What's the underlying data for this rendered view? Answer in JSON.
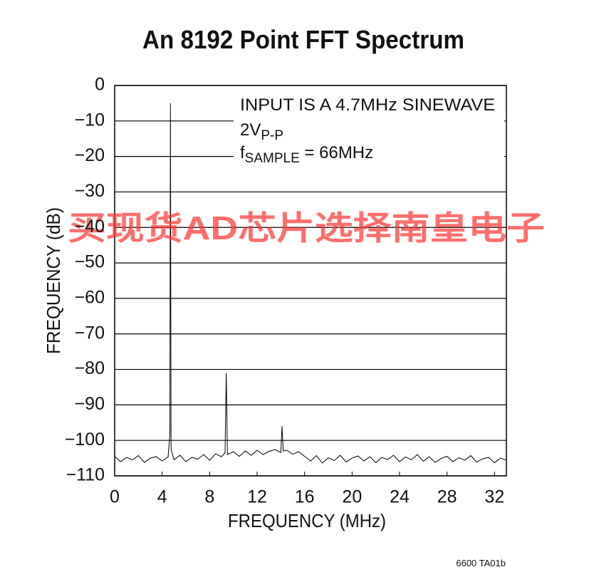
{
  "chart_data": {
    "type": "line",
    "title": "An 8192 Point FFT Spectrum",
    "x_label": "FREQUENCY (MHz)",
    "y_label": "FREQUENCY (dB)",
    "annotation": {
      "line1": "INPUT IS A 4.7MHz SINEWAVE",
      "line2": {
        "text": "2V",
        "sub": "P-P"
      },
      "line3": {
        "text": "f",
        "sub": "SAMPLE",
        "suffix": " = 66MHz"
      }
    },
    "watermark": "买现货AD芯片选择南皇电子",
    "footnote": "6600 TA01b",
    "color": "#000000",
    "grid": true,
    "xlim": [
      0,
      33
    ],
    "ylim": [
      -110,
      0
    ],
    "xticks": [
      0,
      4,
      8,
      12,
      16,
      20,
      24,
      28,
      32
    ],
    "yticks": [
      0,
      {
        "value": -10,
        "label": "−10"
      },
      {
        "value": -20,
        "label": "−20"
      },
      {
        "value": -30,
        "label": "−30"
      },
      {
        "value": -40,
        "label": "−40"
      },
      {
        "value": -50,
        "label": "−50"
      },
      {
        "value": -60,
        "label": "−60"
      },
      {
        "value": -70,
        "label": "−70"
      },
      {
        "value": -80,
        "label": "−80"
      },
      {
        "value": -90,
        "label": "−90"
      },
      {
        "value": -100,
        "label": "−100"
      },
      {
        "value": -110,
        "label": "−110"
      }
    ],
    "x": [
      0,
      0.5,
      1,
      1.5,
      2,
      2.5,
      3,
      3.5,
      4,
      4.5,
      4.65,
      4.7,
      4.75,
      5,
      5.5,
      6,
      6.5,
      7,
      7.5,
      8,
      8.5,
      9,
      9.3,
      9.4,
      9.5,
      10,
      10.5,
      11,
      11.5,
      12,
      12.5,
      13,
      13.5,
      14,
      14.1,
      14.2,
      14.5,
      15,
      15.5,
      16,
      16.5,
      17,
      17.5,
      18,
      18.5,
      19,
      19.5,
      20,
      20.5,
      21,
      21.5,
      22,
      22.5,
      23,
      23.5,
      24,
      24.5,
      25,
      25.5,
      26,
      26.5,
      27,
      27.5,
      28,
      28.5,
      29,
      29.5,
      30,
      30.5,
      31,
      31.5,
      32,
      32.5,
      33
    ],
    "values": [
      -104.5,
      -106,
      -104.8,
      -105.5,
      -104.3,
      -106.2,
      -105,
      -104.6,
      -105.8,
      -104.7,
      -98.5,
      -5,
      -102.5,
      -105.5,
      -104.2,
      -106,
      -104.8,
      -105.3,
      -104,
      -105.6,
      -103.8,
      -104.6,
      -103.5,
      -81,
      -104,
      -103.2,
      -104.5,
      -103,
      -104.2,
      -102.8,
      -104,
      -103.1,
      -102.6,
      -103.4,
      -96,
      -103,
      -102.8,
      -103.9,
      -103.2,
      -104.5,
      -105.8,
      -104.3,
      -106.4,
      -104.9,
      -105.7,
      -104.2,
      -106.1,
      -105,
      -104.4,
      -105.8,
      -104.6,
      -106.3,
      -104.8,
      -105.4,
      -104.2,
      -106,
      -104.7,
      -105.5,
      -104,
      -105.9,
      -104.6,
      -106.2,
      -105.1,
      -104.5,
      -106,
      -104.9,
      -105.6,
      -104.3,
      -106.1,
      -105.2,
      -104.8,
      -106.3,
      -105,
      -105.6
    ]
  }
}
